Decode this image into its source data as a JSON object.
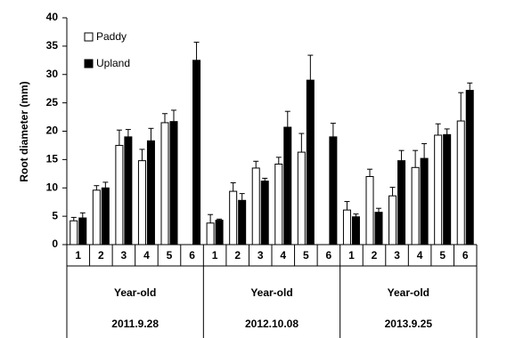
{
  "chart_data": {
    "type": "bar",
    "y_label": "Root diameter  (mm)",
    "categories": [
      "1",
      "2",
      "3",
      "4",
      "5",
      "6",
      "1",
      "2",
      "3",
      "4",
      "5",
      "6",
      "1",
      "2",
      "3",
      "4",
      "5",
      "6"
    ],
    "groups": [
      {
        "label": "Year-old",
        "date": "2011.9.28"
      },
      {
        "label": "Year-old",
        "date": "2012.10.08"
      },
      {
        "label": "Year-old",
        "date": "2013.9.25"
      }
    ],
    "series": [
      {
        "name": "Paddy",
        "color": "#ffffff",
        "values": [
          4.2,
          9.6,
          17.5,
          14.8,
          21.5,
          null,
          3.8,
          9.4,
          13.5,
          14.2,
          16.3,
          null,
          6.1,
          12.0,
          8.6,
          13.6,
          19.3,
          21.8
        ],
        "errors": [
          0.6,
          0.8,
          2.7,
          2.0,
          1.6,
          null,
          1.5,
          1.5,
          1.2,
          1.2,
          3.3,
          null,
          1.5,
          1.3,
          1.5,
          3.0,
          2.0,
          5.0
        ]
      },
      {
        "name": "Upland",
        "color": "#000000",
        "values": [
          4.7,
          10.0,
          19.0,
          18.3,
          21.7,
          32.5,
          4.3,
          7.8,
          11.2,
          20.7,
          29.0,
          19.0,
          4.9,
          5.7,
          14.8,
          15.2,
          19.4,
          27.2
        ],
        "errors": [
          0.9,
          1.0,
          1.3,
          2.2,
          2.0,
          3.2,
          0.2,
          1.2,
          0.5,
          2.8,
          4.4,
          2.4,
          0.5,
          0.7,
          1.8,
          2.6,
          1.0,
          1.3
        ]
      }
    ],
    "ylim": [
      0,
      40
    ],
    "yticks": [
      0,
      5,
      10,
      15,
      20,
      25,
      30,
      35,
      40
    ],
    "legend": "upper-left"
  }
}
